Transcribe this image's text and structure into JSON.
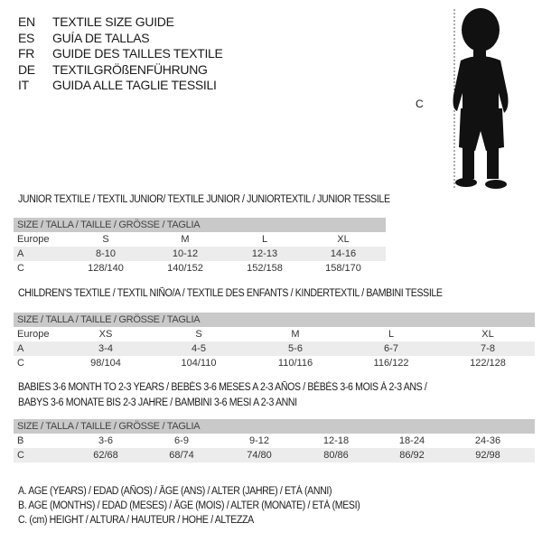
{
  "languages": [
    {
      "code": "EN",
      "label": "TEXTILE SIZE GUIDE"
    },
    {
      "code": "ES",
      "label": "GUÍA DE TALLAS"
    },
    {
      "code": "FR",
      "label": "GUIDE DES TAILLES TEXTILE"
    },
    {
      "code": "DE",
      "label": "TEXTILGRÖßENFÜHRUNG"
    },
    {
      "code": "IT",
      "label": "GUIDA ALLE TAGLIE TESSILI"
    }
  ],
  "figure": {
    "measure_label": "C",
    "icon": "toddler-silhouette"
  },
  "size_header": "SIZE / TALLA / TAILLE / GRÖSSE / TAGLIA",
  "junior": {
    "title": "JUNIOR TEXTILE / TEXTIL JUNIOR/ TEXTILE JUNIOR / JUNIORTEXTIL / JUNIOR TESSILE",
    "rows": [
      {
        "label": "Europe",
        "cells": [
          "S",
          "M",
          "L",
          "XL"
        ]
      },
      {
        "label": "A",
        "cells": [
          "8-10",
          "10-12",
          "12-13",
          "14-16"
        ]
      },
      {
        "label": "C",
        "cells": [
          "128/140",
          "140/152",
          "152/158",
          "158/170"
        ]
      }
    ]
  },
  "children": {
    "title": "CHILDREN'S TEXTILE / TEXTIL NIÑO/A / TEXTILE DES ENFANTS / KINDERTEXTIL / BAMBINI TESSILE",
    "rows": [
      {
        "label": "Europe",
        "cells": [
          "XS",
          "S",
          "M",
          "L",
          "XL"
        ]
      },
      {
        "label": "A",
        "cells": [
          "3-4",
          "4-5",
          "5-6",
          "6-7",
          "7-8"
        ]
      },
      {
        "label": "C",
        "cells": [
          "98/104",
          "104/110",
          "110/116",
          "116/122",
          "122/128"
        ]
      }
    ]
  },
  "babies": {
    "title_line1": "BABIES 3-6 MONTH TO 2-3 YEARS / BEBÉS 3-6 MESES A 2-3 AÑOS / BÉBÉS 3-6 MOIS À 2-3 ANS /",
    "title_line2": "BABYS 3-6 MONATE BIS 2-3 JAHRE / BAMBINI 3-6 MESI A 2-3 ANNI",
    "rows": [
      {
        "label": "B",
        "cells": [
          "3-6",
          "6-9",
          "9-12",
          "12-18",
          "18-24",
          "24-36"
        ]
      },
      {
        "label": "C",
        "cells": [
          "62/68",
          "68/74",
          "74/80",
          "80/86",
          "86/92",
          "92/98"
        ]
      }
    ]
  },
  "legend": [
    "A. AGE (YEARS) / EDAD (AÑOS) / ÂGE (ANS) / ALTER (JAHRE) / ETÀ (ANNI)",
    "B. AGE (MONTHS) / EDAD (MESES) / ÂGE (MOIS) / ALTER (MONATE) / ETÀ (MESI)",
    "C. (cm) HEIGHT / ALTURA / HAUTEUR / HÖHE / ALTEZZA"
  ]
}
